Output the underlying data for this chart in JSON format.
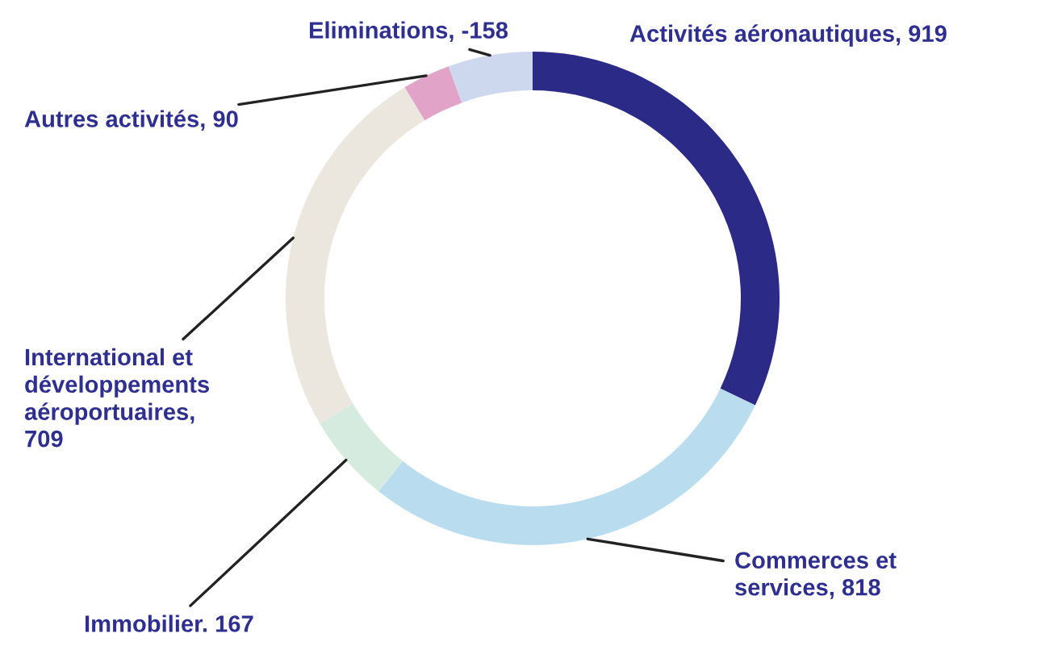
{
  "chart_data": {
    "type": "donut",
    "categories": [
      "Activités aéronautiques, 919",
      "Commerces et\nservices, 818",
      "Immobilier. 167",
      "International et\ndéveloppements\naéroportuaires,\n709",
      "Autres activités, 90",
      "Eliminations, -158"
    ],
    "values": [
      919,
      818,
      167,
      709,
      90,
      158
    ],
    "colors": [
      "#2b2a86",
      "#b9ddef",
      "#d5ebdf",
      "#ebe7df",
      "#e2a3c8",
      "#cdd8ee"
    ],
    "legend": false
  }
}
